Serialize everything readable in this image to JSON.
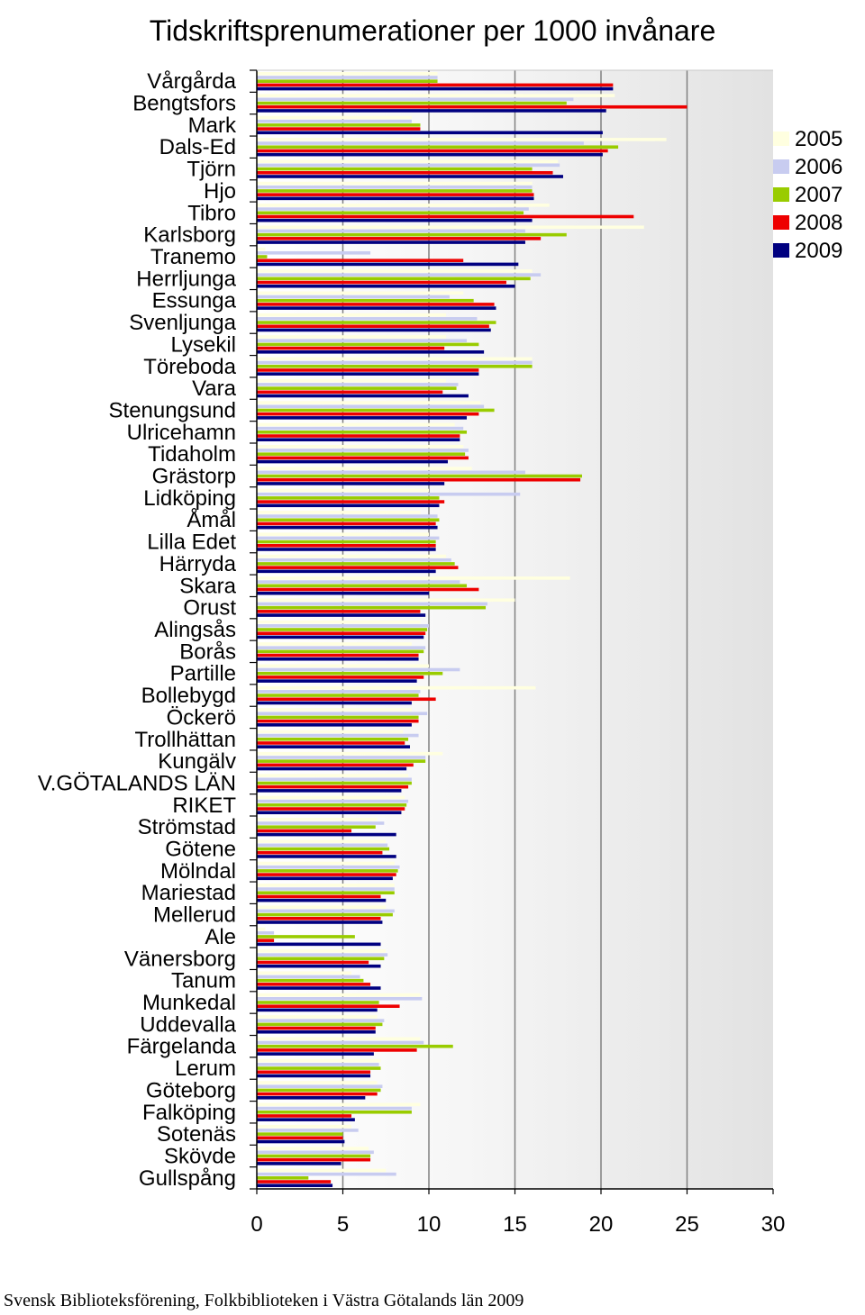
{
  "chart_data": {
    "type": "bar",
    "orientation": "horizontal",
    "title": "Tidskriftsprenumerationer per 1000 invånare",
    "footer": "Svensk Biblioteksförening, Folkbiblioteken i Västra Götalands län 2009",
    "xlim": [
      0,
      30
    ],
    "xticks": [
      "0",
      "5",
      "10",
      "15",
      "20",
      "25",
      "30"
    ],
    "legend_position": "right",
    "categories": [
      "Vårgårda",
      "Bengtsfors",
      "Mark",
      "Dals-Ed",
      "Tjörn",
      "Hjo",
      "Tibro",
      "Karlsborg",
      "Tranemo",
      "Herrljunga",
      "Essunga",
      "Svenljunga",
      "Lysekil",
      "Töreboda",
      "Vara",
      "Stenungsund",
      "Ulricehamn",
      "Tidaholm",
      "Grästorp",
      "Lidköping",
      "Åmål",
      "Lilla Edet",
      "Härryda",
      "Skara",
      "Orust",
      "Alingsås",
      "Borås",
      "Partille",
      "Bollebygd",
      "Öckerö",
      "Trollhättan",
      "Kungälv",
      "V.GÖTALANDS LÄN",
      "RIKET",
      "Strömstad",
      "Götene",
      "Mölndal",
      "Mariestad",
      "Mellerud",
      "Ale",
      "Vänersborg",
      "Tanum",
      "Munkedal",
      "Uddevalla",
      "Färgelanda",
      "Lerum",
      "Göteborg",
      "Falköping",
      "Sotenäs",
      "Skövde",
      "Gullspång"
    ],
    "series": [
      {
        "name": "2005",
        "color": "#FFFFE0",
        "values": [
          10.5,
          20.8,
          9.0,
          23.8,
          17.5,
          16.0,
          17.0,
          22.5,
          0.5,
          16.0,
          12.0,
          11.0,
          11.0,
          16.0,
          11.0,
          13.0,
          11.5,
          12.0,
          12.5,
          10.0,
          9.5,
          10.0,
          11.0,
          18.2,
          15.0,
          9.5,
          9.0,
          10.0,
          16.2,
          9.0,
          8.5,
          10.8,
          8.8,
          8.6,
          7.0,
          7.5,
          8.0,
          8.0,
          7.5,
          0.5,
          7.5,
          5.5,
          9.5,
          7.0,
          9.5,
          7.2,
          7.0,
          9.5,
          5.5,
          6.5,
          7.5
        ]
      },
      {
        "name": "2006",
        "color": "#C8CCF0",
        "values": [
          10.5,
          18.4,
          9.0,
          19.0,
          17.6,
          16.0,
          15.8,
          15.6,
          6.6,
          16.5,
          11.2,
          12.8,
          12.2,
          16.0,
          11.7,
          13.2,
          12.0,
          12.3,
          15.6,
          15.3,
          10.5,
          10.6,
          11.3,
          11.8,
          13.4,
          10.0,
          9.8,
          11.8,
          9.5,
          9.9,
          9.4,
          9.8,
          9.0,
          8.8,
          7.4,
          7.6,
          8.3,
          8.0,
          8.0,
          1.0,
          7.6,
          6.0,
          9.6,
          7.4,
          9.7,
          7.1,
          7.3,
          9.0,
          5.9,
          6.8,
          8.1
        ]
      },
      {
        "name": "2007",
        "color": "#99CC00",
        "values": [
          10.5,
          18.0,
          9.5,
          21.0,
          16.0,
          16.0,
          15.5,
          18.0,
          0.6,
          15.9,
          12.6,
          13.9,
          12.9,
          16.0,
          11.6,
          13.8,
          12.2,
          12.1,
          18.9,
          10.6,
          10.6,
          10.4,
          11.5,
          12.2,
          13.3,
          9.9,
          9.7,
          10.8,
          9.4,
          9.4,
          8.8,
          9.8,
          9.0,
          8.7,
          6.9,
          7.7,
          8.2,
          8.0,
          7.9,
          5.7,
          7.4,
          6.2,
          7.1,
          7.3,
          11.4,
          7.2,
          7.2,
          9.0,
          5.0,
          6.6,
          3.0
        ]
      },
      {
        "name": "2008",
        "color": "#EE0000",
        "values": [
          20.7,
          25.0,
          9.5,
          20.4,
          17.2,
          16.1,
          21.9,
          16.5,
          12.0,
          14.5,
          13.8,
          13.5,
          10.9,
          12.9,
          10.8,
          12.9,
          11.8,
          12.3,
          18.8,
          10.9,
          10.4,
          10.4,
          11.7,
          12.9,
          9.5,
          9.8,
          9.4,
          9.7,
          10.4,
          9.4,
          8.6,
          9.1,
          8.8,
          8.6,
          5.5,
          7.3,
          8.1,
          7.2,
          7.2,
          1.0,
          6.5,
          6.6,
          8.3,
          6.9,
          9.3,
          6.6,
          7.0,
          5.5,
          5.0,
          6.6,
          4.3
        ]
      },
      {
        "name": "2009",
        "color": "#000080",
        "values": [
          20.7,
          20.3,
          20.1,
          20.1,
          17.8,
          16.1,
          16.0,
          15.6,
          15.2,
          15.0,
          13.9,
          13.6,
          13.2,
          12.9,
          12.3,
          12.2,
          11.8,
          11.1,
          10.9,
          10.6,
          10.5,
          10.4,
          10.4,
          10.0,
          9.8,
          9.7,
          9.4,
          9.3,
          9.0,
          9.0,
          8.9,
          8.7,
          8.4,
          8.4,
          8.1,
          8.1,
          7.9,
          7.5,
          7.3,
          7.2,
          7.2,
          7.2,
          7.0,
          6.9,
          6.8,
          6.6,
          6.3,
          5.7,
          5.1,
          4.9,
          4.4
        ]
      }
    ]
  }
}
